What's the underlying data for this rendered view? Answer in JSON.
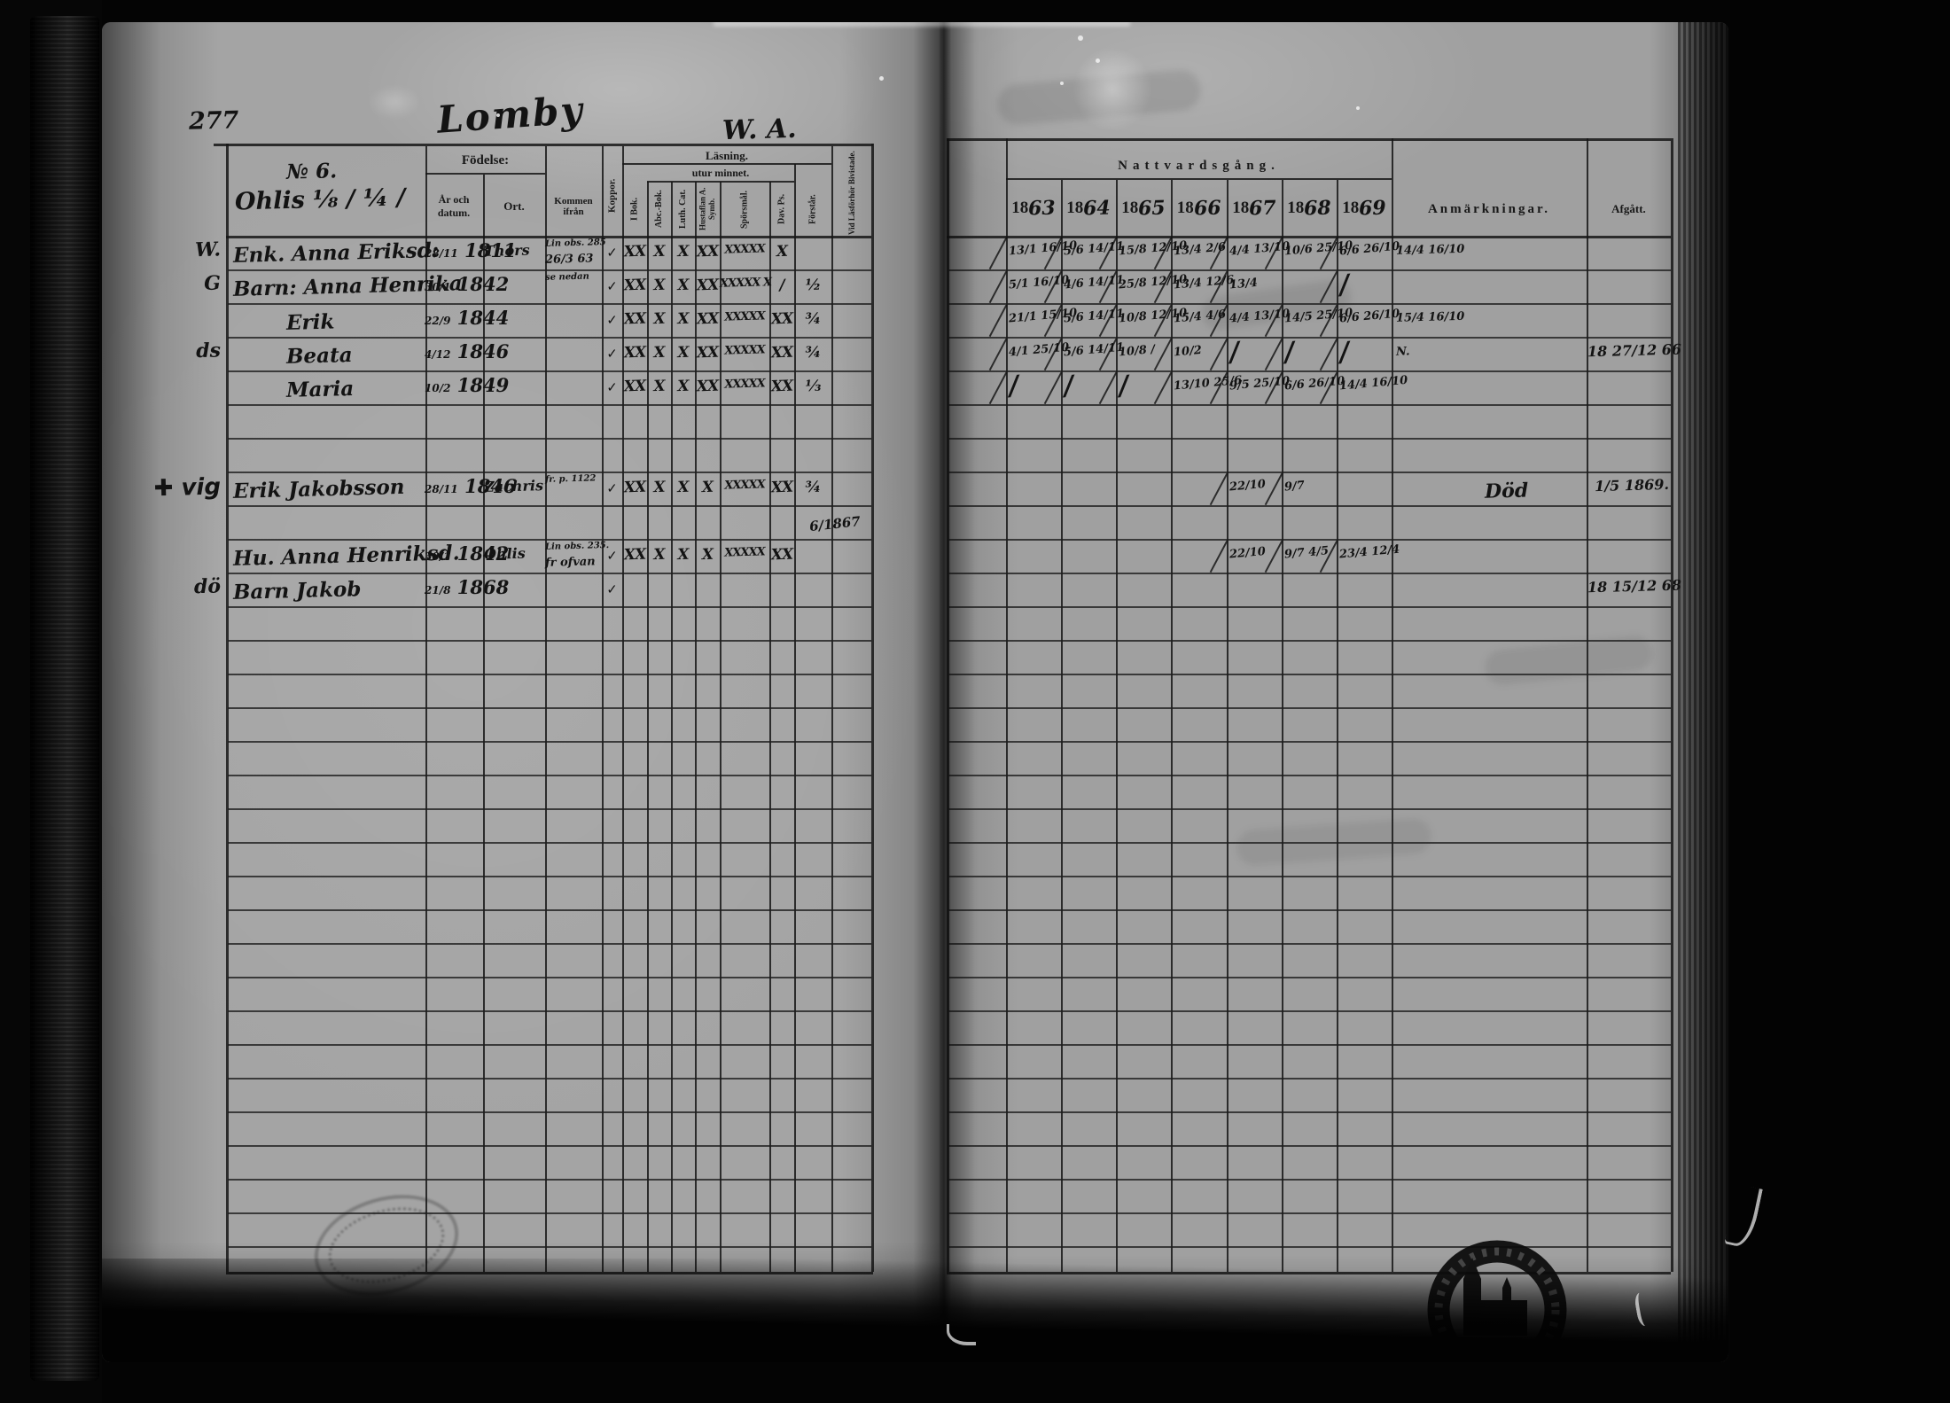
{
  "scan": {
    "folio": "277",
    "place_title": "Lomby",
    "page_initials": "W. A.",
    "household_number": "№ 6.",
    "household_name": "Ohlis ⅛ / ¼ /",
    "lasforhor_note": "6/1867"
  },
  "table": {
    "fodelse": "Födelse:",
    "ar_och_datum": "År och datum.",
    "ort": "Ort.",
    "kommen_ifran": "Kommen ifrån",
    "koppor": "Koppor.",
    "lasning": "Läsning.",
    "utur_minnet": "utur minnet.",
    "reading_cols": [
      "I Bok.",
      "Abc.-Bok.",
      "Luth. Cat.",
      "Hustaflan A. Symb.",
      "Spörsmål.",
      "Dav. Ps.",
      "Förstår."
    ],
    "vid_lasforhor": "Vid Läsförhör Bivistade.",
    "nattvardsgang": "Nattvardsgång.",
    "years": [
      "1863",
      "1864",
      "1865",
      "1866",
      "1867",
      "1868",
      "1869"
    ],
    "anmarkningar": "Anmärkningar.",
    "afgatt": "Afgått."
  },
  "rows": [
    {
      "slot": 0,
      "margin": "W.",
      "name": "Enk. Anna Eriksd:",
      "indent": 0,
      "birth_day": "28/11",
      "birth_year": "1811",
      "ort": "Thors",
      "kommen": [
        "Lin obs. 285",
        "26/3 63"
      ],
      "koppor": "✓",
      "reading": [
        "XX",
        "X",
        "X",
        "XX",
        "XXXXX",
        "X",
        ""
      ],
      "communion": [
        "13/1 16/10",
        "5/6 14/11",
        "15/8 12/10",
        "13/4 2/6",
        "4/4 13/10",
        "10/6 25/10",
        "6/6 26/10"
      ],
      "anm": "14/4 16/10",
      "afgatt": ""
    },
    {
      "slot": 1,
      "margin": "G",
      "name": "Barn: Anna Henrika",
      "indent": 0,
      "birth_day": "30/1",
      "birth_year": "1842",
      "ort": "",
      "kommen": [
        "se nedan"
      ],
      "koppor": "✓",
      "reading": [
        "XX",
        "X",
        "X",
        "XX",
        "XXXXX X",
        "/",
        "½"
      ],
      "communion": [
        "5/1 16/10",
        "4/6 14/11",
        "25/8 12/10",
        "13/4 12/6",
        "13/4",
        "",
        "/"
      ],
      "anm": "",
      "afgatt": ""
    },
    {
      "slot": 2,
      "margin": "",
      "name": "Erik",
      "indent": 60,
      "birth_day": "22/9",
      "birth_year": "1844",
      "ort": "",
      "kommen": [],
      "koppor": "✓",
      "reading": [
        "XX",
        "X",
        "X",
        "XX",
        "XXXXX",
        "XX",
        "¾"
      ],
      "communion": [
        "21/1 15/10",
        "5/6 14/11",
        "10/8 12/10",
        "15/4 4/6",
        "4/4 13/10",
        "14/5 25/10",
        "6/6 26/10"
      ],
      "anm": "15/4 16/10",
      "afgatt": ""
    },
    {
      "slot": 3,
      "margin": "ds",
      "name": "Beata",
      "indent": 60,
      "birth_day": "4/12",
      "birth_year": "1846",
      "ort": "",
      "kommen": [],
      "koppor": "✓",
      "reading": [
        "XX",
        "X",
        "X",
        "XX",
        "XXXXX",
        "XX",
        "¾"
      ],
      "communion": [
        "4/1 25/10",
        "5/6 14/11",
        "10/8 /",
        "10/2",
        "/",
        "/",
        "/"
      ],
      "anm": "N.",
      "afgatt": "18 27/12 66"
    },
    {
      "slot": 4,
      "margin": "",
      "name": "Maria",
      "indent": 60,
      "birth_day": "10/2",
      "birth_year": "1849",
      "ort": "",
      "kommen": [],
      "koppor": "✓",
      "reading": [
        "XX",
        "X",
        "X",
        "XX",
        "XXXXX",
        "XX",
        "⅓"
      ],
      "communion": [
        "/",
        "/",
        "/",
        "13/10 25/6",
        "9/5 25/10",
        "6/6 26/10",
        "14/4 16/10"
      ],
      "anm": "",
      "afgatt": ""
    },
    {
      "slot": 7,
      "margin": "✚ vig",
      "name": "Erik Jakobsson",
      "indent": 0,
      "birth_day": "28/11",
      "birth_year": "1846",
      "ort": "Zachris",
      "kommen": [
        "fr. p. 1122"
      ],
      "koppor": "✓",
      "reading": [
        "XX",
        "X",
        "X",
        "X",
        "XXXXX",
        "XX",
        "¾"
      ],
      "communion": [
        "",
        "",
        "",
        "",
        "22/10",
        "9/7",
        ""
      ],
      "anm": "Död",
      "afgatt": "1/5 1869."
    },
    {
      "slot": 9,
      "margin": "",
      "name": "Hu. Anna Henriksd.",
      "indent": 0,
      "birth_day": "30/1",
      "birth_year": "1842",
      "ort": "Ohlis",
      "kommen": [
        "Lin obs. 235.",
        "fr ofvan"
      ],
      "koppor": "✓",
      "reading": [
        "XX",
        "X",
        "X",
        "X",
        "XXXXX",
        "XX",
        ""
      ],
      "communion": [
        "",
        "",
        "",
        "",
        "22/10",
        "9/7 4/5",
        "23/4 12/4"
      ],
      "anm": "",
      "afgatt": ""
    },
    {
      "slot": 10,
      "margin": "dö",
      "name": "Barn Jakob",
      "indent": 0,
      "birth_day": "21/8",
      "birth_year": "1868",
      "ort": "",
      "kommen": [],
      "koppor": "✓",
      "reading": [
        "",
        "",
        "",
        "",
        "",
        "",
        ""
      ],
      "communion": [
        "",
        "",
        "",
        "",
        "",
        "",
        ""
      ],
      "anm": "",
      "afgatt": "18 15/12 68"
    }
  ]
}
